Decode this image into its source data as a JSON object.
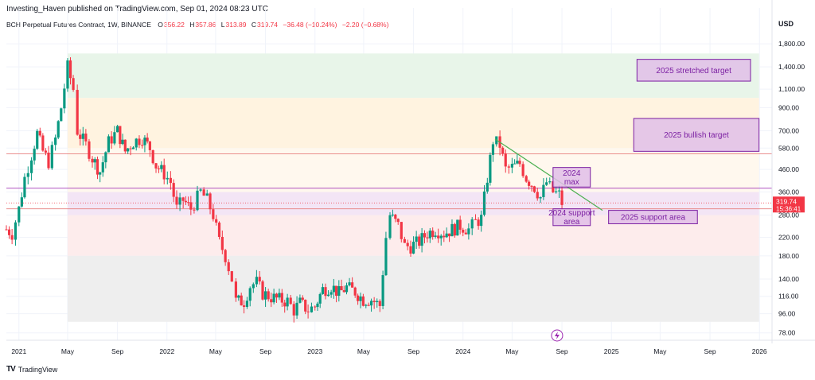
{
  "header": {
    "published": "Investing_Haven published on TradingView.com, Sep 01, 2024 08:23 UTC"
  },
  "legend": {
    "symbol": "BCH Perpetual Futures Contract, 1W, BINANCE",
    "o_label": "O",
    "o_value": "356.22",
    "h_label": "H",
    "h_value": "357.86",
    "l_label": "L",
    "l_value": "313.89",
    "c_label": "C",
    "c_value": "319.74",
    "change": "−36.48 (−10.24%)",
    "change2": "−2.20 (−0.68%)"
  },
  "currency": "USD",
  "last_price": {
    "value": "319.74",
    "countdown": "15:36:41"
  },
  "footer": {
    "logo": "TV",
    "brand": "TradingView"
  },
  "colors": {
    "up": "#089981",
    "down": "#f23645",
    "annotation": "#7b1fa2",
    "annotation_fill": "#e1bee7",
    "trendline": "#4caf50"
  },
  "chart_data": {
    "type": "candlestick",
    "log_scale": true,
    "y_ticks": [
      78,
      96,
      116,
      140,
      180,
      220,
      280,
      360,
      460,
      580,
      700,
      900,
      1100,
      1400,
      1800
    ],
    "y_tick_labels": [
      "78.00",
      "96.00",
      "116.00",
      "140.00",
      "180.00",
      "220.00",
      "280.00",
      "360.00",
      "460.00",
      "580.00",
      "700.00",
      "900.00",
      "1,100.00",
      "1,400.00",
      "1,800.00"
    ],
    "x_ticks": [
      {
        "label": "2021",
        "date": "2021-01-01"
      },
      {
        "label": "May",
        "date": "2021-05-01"
      },
      {
        "label": "Sep",
        "date": "2021-09-01"
      },
      {
        "label": "2022",
        "date": "2022-01-01"
      },
      {
        "label": "May",
        "date": "2022-05-01"
      },
      {
        "label": "Sep",
        "date": "2022-09-01"
      },
      {
        "label": "2023",
        "date": "2023-01-01"
      },
      {
        "label": "May",
        "date": "2023-05-01"
      },
      {
        "label": "Sep",
        "date": "2023-09-01"
      },
      {
        "label": "2024",
        "date": "2024-01-01"
      },
      {
        "label": "May",
        "date": "2024-05-01"
      },
      {
        "label": "Sep",
        "date": "2024-09-01"
      },
      {
        "label": "2025",
        "date": "2025-01-01"
      },
      {
        "label": "May",
        "date": "2025-05-01"
      },
      {
        "label": "Sep",
        "date": "2025-09-01"
      },
      {
        "label": "2026",
        "date": "2026-01-01"
      }
    ],
    "series": [
      {
        "date": "2020-12-01",
        "close": 240
      },
      {
        "date": "2020-12-15",
        "close": 230
      },
      {
        "date": "2021-01-01",
        "close": 300
      },
      {
        "date": "2021-01-15",
        "close": 420
      },
      {
        "date": "2021-02-01",
        "close": 540
      },
      {
        "date": "2021-02-15",
        "close": 680
      },
      {
        "date": "2021-03-01",
        "close": 560
      },
      {
        "date": "2021-03-15",
        "close": 500
      },
      {
        "date": "2021-04-01",
        "close": 640
      },
      {
        "date": "2021-04-15",
        "close": 900
      },
      {
        "date": "2021-05-01",
        "close": 1400
      },
      {
        "date": "2021-05-15",
        "close": 1100
      },
      {
        "date": "2021-05-25",
        "close": 700
      },
      {
        "date": "2021-06-15",
        "close": 600
      },
      {
        "date": "2021-07-01",
        "close": 520
      },
      {
        "date": "2021-07-20",
        "close": 450
      },
      {
        "date": "2021-08-10",
        "close": 620
      },
      {
        "date": "2021-09-01",
        "close": 700
      },
      {
        "date": "2021-09-20",
        "close": 560
      },
      {
        "date": "2021-10-10",
        "close": 620
      },
      {
        "date": "2021-11-01",
        "close": 650
      },
      {
        "date": "2021-11-20",
        "close": 580
      },
      {
        "date": "2021-12-05",
        "close": 480
      },
      {
        "date": "2021-12-25",
        "close": 440
      },
      {
        "date": "2022-01-10",
        "close": 400
      },
      {
        "date": "2022-01-25",
        "close": 300
      },
      {
        "date": "2022-02-10",
        "close": 330
      },
      {
        "date": "2022-03-01",
        "close": 300
      },
      {
        "date": "2022-03-25",
        "close": 360
      },
      {
        "date": "2022-04-10",
        "close": 330
      },
      {
        "date": "2022-04-25",
        "close": 280
      },
      {
        "date": "2022-05-10",
        "close": 210
      },
      {
        "date": "2022-05-25",
        "close": 180
      },
      {
        "date": "2022-06-10",
        "close": 140
      },
      {
        "date": "2022-06-20",
        "close": 110
      },
      {
        "date": "2022-07-10",
        "close": 110
      },
      {
        "date": "2022-07-25",
        "close": 130
      },
      {
        "date": "2022-08-10",
        "close": 135
      },
      {
        "date": "2022-08-25",
        "close": 120
      },
      {
        "date": "2022-09-15",
        "close": 115
      },
      {
        "date": "2022-10-05",
        "close": 112
      },
      {
        "date": "2022-10-25",
        "close": 110
      },
      {
        "date": "2022-11-10",
        "close": 100
      },
      {
        "date": "2022-11-25",
        "close": 108
      },
      {
        "date": "2022-12-15",
        "close": 100
      },
      {
        "date": "2023-01-01",
        "close": 104
      },
      {
        "date": "2023-01-20",
        "close": 125
      },
      {
        "date": "2023-02-10",
        "close": 130
      },
      {
        "date": "2023-03-01",
        "close": 120
      },
      {
        "date": "2023-03-20",
        "close": 128
      },
      {
        "date": "2023-04-10",
        "close": 122
      },
      {
        "date": "2023-04-30",
        "close": 112
      },
      {
        "date": "2023-05-20",
        "close": 112
      },
      {
        "date": "2023-06-10",
        "close": 105
      },
      {
        "date": "2023-06-25",
        "close": 220
      },
      {
        "date": "2023-07-05",
        "close": 280
      },
      {
        "date": "2023-07-25",
        "close": 250
      },
      {
        "date": "2023-08-10",
        "close": 200
      },
      {
        "date": "2023-08-25",
        "close": 200
      },
      {
        "date": "2023-09-15",
        "close": 210
      },
      {
        "date": "2023-10-05",
        "close": 230
      },
      {
        "date": "2023-10-25",
        "close": 240
      },
      {
        "date": "2023-11-15",
        "close": 230
      },
      {
        "date": "2023-12-05",
        "close": 240
      },
      {
        "date": "2023-12-25",
        "close": 250
      },
      {
        "date": "2024-01-15",
        "close": 240
      },
      {
        "date": "2024-02-01",
        "close": 260
      },
      {
        "date": "2024-02-15",
        "close": 270
      },
      {
        "date": "2024-03-01",
        "close": 420
      },
      {
        "date": "2024-03-15",
        "close": 630
      },
      {
        "date": "2024-04-01",
        "close": 600
      },
      {
        "date": "2024-04-15",
        "close": 460
      },
      {
        "date": "2024-05-01",
        "close": 470
      },
      {
        "date": "2024-05-20",
        "close": 490
      },
      {
        "date": "2024-06-05",
        "close": 420
      },
      {
        "date": "2024-06-25",
        "close": 380
      },
      {
        "date": "2024-07-10",
        "close": 340
      },
      {
        "date": "2024-07-25",
        "close": 400
      },
      {
        "date": "2024-08-10",
        "close": 360
      },
      {
        "date": "2024-08-25",
        "close": 350
      },
      {
        "date": "2024-09-01",
        "close": 320
      }
    ],
    "zones": [
      {
        "from": 1000,
        "to": 1620,
        "color": "#e8f5e9",
        "date_from": "2021-05-01",
        "date_to": "2025-12-31"
      },
      {
        "from": 580,
        "to": 1000,
        "color": "#fff3e0",
        "date_from": "2021-05-01",
        "date_to": "2025-12-31"
      },
      {
        "from": 360,
        "to": 580,
        "color": "#fff8ee",
        "date_from": "2021-05-01",
        "date_to": "2025-12-31"
      },
      {
        "from": 280,
        "to": 360,
        "color": "#f3e5f5",
        "date_from": "2021-05-01",
        "date_to": "2025-12-31"
      },
      {
        "from": 180,
        "to": 280,
        "color": "#fdecec",
        "date_from": "2021-05-01",
        "date_to": "2025-12-31"
      },
      {
        "from": 88,
        "to": 180,
        "color": "#eeeeee",
        "date_from": "2021-05-01",
        "date_to": "2025-12-31"
      }
    ],
    "levels": [
      {
        "price": 375,
        "color": "#9c27b0"
      },
      {
        "price": 545,
        "color": "#e57373"
      },
      {
        "price": 300,
        "color": "#e57373"
      }
    ],
    "trendline": {
      "from": {
        "date": "2024-03-20",
        "price": 640
      },
      "to": {
        "date": "2024-12-10",
        "price": 295
      }
    },
    "annotations": [
      {
        "text": [
          "2025 stretched target"
        ],
        "date_from": "2025-03-05",
        "date_to": "2025-12-10",
        "price_from": 1200,
        "price_to": 1520
      },
      {
        "text": [
          "2025 bullish target"
        ],
        "date_from": "2025-02-25",
        "date_to": "2025-12-31",
        "price_from": 560,
        "price_to": 800
      },
      {
        "text": [
          "2024",
          "max"
        ],
        "date_from": "2024-08-10",
        "date_to": "2024-11-10",
        "price_from": 380,
        "price_to": 470
      },
      {
        "text": [
          "2024 support",
          "area"
        ],
        "date_from": "2024-08-10",
        "date_to": "2024-11-10",
        "price_from": 250,
        "price_to": 300
      },
      {
        "text": [
          "2025 support area"
        ],
        "date_from": "2024-12-25",
        "date_to": "2025-08-01",
        "price_from": 255,
        "price_to": 295
      }
    ]
  }
}
